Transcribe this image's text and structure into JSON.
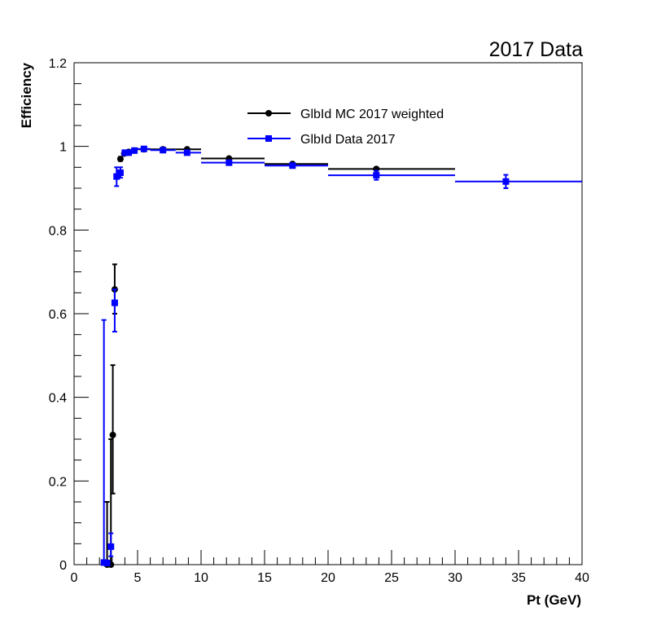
{
  "chart_data": {
    "type": "scatter",
    "title": "2017 Data",
    "xlabel": "Pt (GeV)",
    "ylabel": "Efficiency",
    "xlim": [
      0,
      40
    ],
    "ylim": [
      0,
      1.2
    ],
    "x_ticks": [
      "0",
      "5",
      "10",
      "15",
      "20",
      "25",
      "30",
      "35",
      "40"
    ],
    "y_ticks": [
      "0",
      "0.2",
      "0.4",
      "0.6",
      "0.8",
      "1",
      "1.2"
    ],
    "grid": false,
    "legend_position": "top-center",
    "series": [
      {
        "name": "GlbId MC 2017 weighted",
        "color": "#000000",
        "marker": "circle",
        "points": [
          {
            "x": 2.6,
            "y": 0.0,
            "xlo": 2.45,
            "xhi": 2.75,
            "ylo": 0.0,
            "yhi": 0.15
          },
          {
            "x": 2.9,
            "y": 0.0,
            "xlo": 2.75,
            "xhi": 3.0,
            "ylo": 0.0,
            "yhi": 0.3
          },
          {
            "x": 3.05,
            "y": 0.31,
            "xlo": 3.0,
            "xhi": 3.12,
            "ylo": 0.17,
            "yhi": 0.477
          },
          {
            "x": 3.2,
            "y": 0.658,
            "xlo": 3.12,
            "xhi": 3.3,
            "ylo": 0.6,
            "yhi": 0.718
          },
          {
            "x": 3.65,
            "y": 0.97,
            "xlo": 3.55,
            "xhi": 3.75,
            "ylo": 0.965,
            "yhi": 0.975
          },
          {
            "x": 3.95,
            "y": 0.983,
            "xlo": 3.75,
            "xhi": 4.1,
            "ylo": 0.98,
            "yhi": 0.986
          },
          {
            "x": 4.3,
            "y": 0.987,
            "xlo": 4.1,
            "xhi": 4.5,
            "ylo": 0.985,
            "yhi": 0.989
          },
          {
            "x": 4.75,
            "y": 0.99,
            "xlo": 4.5,
            "xhi": 5.0,
            "ylo": 0.988,
            "yhi": 0.992
          },
          {
            "x": 5.5,
            "y": 0.993,
            "xlo": 5.0,
            "xhi": 6.0,
            "ylo": 0.991,
            "yhi": 0.995
          },
          {
            "x": 7.0,
            "y": 0.993,
            "xlo": 6.0,
            "xhi": 8.0,
            "ylo": 0.991,
            "yhi": 0.995
          },
          {
            "x": 8.9,
            "y": 0.993,
            "xlo": 8.0,
            "xhi": 10.0,
            "ylo": 0.991,
            "yhi": 0.995
          },
          {
            "x": 12.2,
            "y": 0.971,
            "xlo": 10.0,
            "xhi": 15.0,
            "ylo": 0.968,
            "yhi": 0.974
          },
          {
            "x": 17.2,
            "y": 0.958,
            "xlo": 15.0,
            "xhi": 20.0,
            "ylo": 0.955,
            "yhi": 0.961
          },
          {
            "x": 23.8,
            "y": 0.946,
            "xlo": 20.0,
            "xhi": 30.0,
            "ylo": 0.943,
            "yhi": 0.949
          }
        ]
      },
      {
        "name": "GlbId Data 2017",
        "color": "#0000ff",
        "marker": "square",
        "points": [
          {
            "x": 2.35,
            "y": 0.005,
            "xlo": 2.25,
            "xhi": 2.45,
            "ylo": 0.0,
            "yhi": 0.585
          },
          {
            "x": 2.6,
            "y": 0.004,
            "xlo": 2.45,
            "xhi": 2.75,
            "ylo": 0.0,
            "yhi": 0.01
          },
          {
            "x": 2.9,
            "y": 0.043,
            "xlo": 2.75,
            "xhi": 3.0,
            "ylo": 0.02,
            "yhi": 0.075
          },
          {
            "x": 3.2,
            "y": 0.626,
            "xlo": 3.1,
            "xhi": 3.3,
            "ylo": 0.557,
            "yhi": 0.658
          },
          {
            "x": 3.35,
            "y": 0.928,
            "xlo": 3.25,
            "xhi": 3.45,
            "ylo": 0.905,
            "yhi": 0.95
          },
          {
            "x": 3.65,
            "y": 0.937,
            "xlo": 3.55,
            "xhi": 3.75,
            "ylo": 0.925,
            "yhi": 0.95
          },
          {
            "x": 4.0,
            "y": 0.985,
            "xlo": 3.8,
            "xhi": 4.1,
            "ylo": 0.98,
            "yhi": 0.99
          },
          {
            "x": 4.3,
            "y": 0.985,
            "xlo": 4.1,
            "xhi": 4.5,
            "ylo": 0.982,
            "yhi": 0.989
          },
          {
            "x": 4.75,
            "y": 0.99,
            "xlo": 4.5,
            "xhi": 5.0,
            "ylo": 0.987,
            "yhi": 0.993
          },
          {
            "x": 5.5,
            "y": 0.994,
            "xlo": 5.0,
            "xhi": 6.0,
            "ylo": 0.992,
            "yhi": 0.996
          },
          {
            "x": 7.0,
            "y": 0.991,
            "xlo": 6.0,
            "xhi": 8.0,
            "ylo": 0.989,
            "yhi": 0.993
          },
          {
            "x": 8.9,
            "y": 0.985,
            "xlo": 8.0,
            "xhi": 10.0,
            "ylo": 0.982,
            "yhi": 0.988
          },
          {
            "x": 12.2,
            "y": 0.961,
            "xlo": 10.0,
            "xhi": 15.0,
            "ylo": 0.957,
            "yhi": 0.965
          },
          {
            "x": 17.2,
            "y": 0.954,
            "xlo": 15.0,
            "xhi": 20.0,
            "ylo": 0.95,
            "yhi": 0.958
          },
          {
            "x": 23.8,
            "y": 0.931,
            "xlo": 20.0,
            "xhi": 30.0,
            "ylo": 0.92,
            "yhi": 0.942
          },
          {
            "x": 34.0,
            "y": 0.916,
            "xlo": 30.0,
            "xhi": 40.0,
            "ylo": 0.9,
            "yhi": 0.932
          }
        ]
      }
    ]
  }
}
